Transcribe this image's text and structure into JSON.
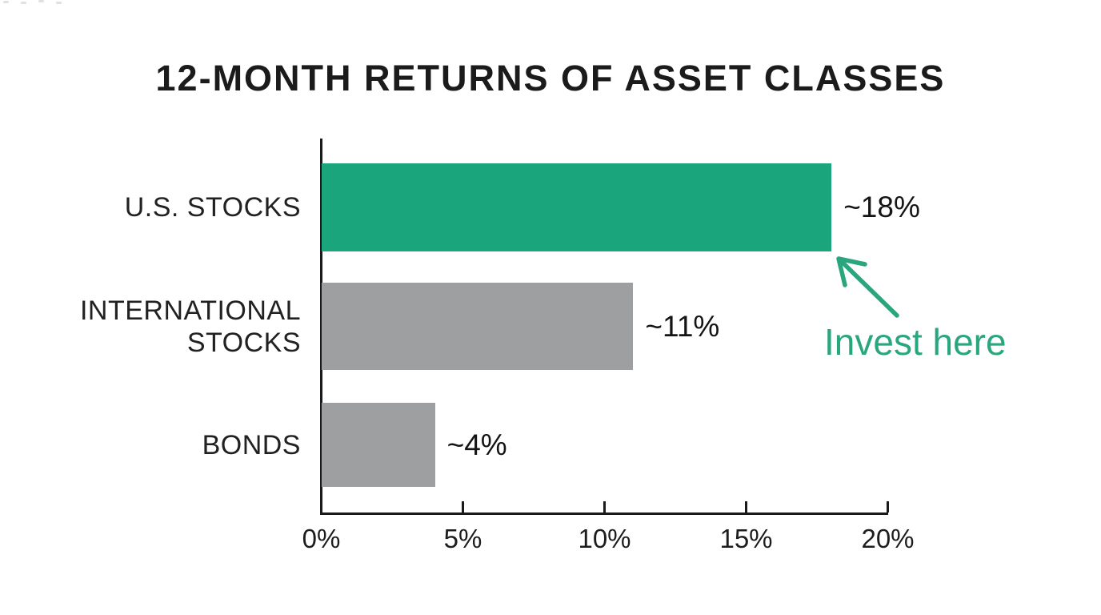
{
  "chart_data": {
    "type": "bar",
    "orientation": "horizontal",
    "title": "12-MONTH RETURNS OF ASSET CLASSES",
    "categories": [
      "U.S. STOCKS",
      "INTERNATIONAL STOCKS",
      "BONDS"
    ],
    "values": [
      18,
      11,
      4
    ],
    "value_labels": [
      "~18%",
      "~11%",
      "~4%"
    ],
    "bar_colors": [
      "#1AA57C",
      "#9E9FA1",
      "#9E9FA1"
    ],
    "xlabel": "",
    "ylabel": "",
    "xlim": [
      0,
      20
    ],
    "x_ticks": [
      "0%",
      "5%",
      "10%",
      "15%",
      "20%"
    ],
    "x_tick_values": [
      0,
      5,
      10,
      15,
      20
    ],
    "grid": false,
    "legend": false
  },
  "annotation": {
    "text": "Invest here",
    "color": "#2AA67E"
  },
  "colors": {
    "highlight_green": "#1AA57C",
    "bar_gray": "#9E9FA1",
    "axis_dark": "#1A1A1A",
    "background": "#FFFFFF"
  }
}
